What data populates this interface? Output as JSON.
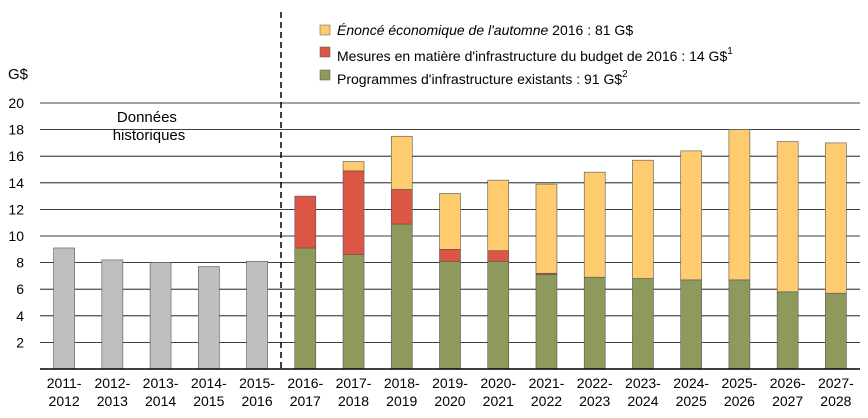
{
  "chart_data": {
    "type": "bar",
    "stacked": true,
    "ylabel": "G$",
    "ylim": [
      0,
      20
    ],
    "yticks": [
      "2",
      "4",
      "6",
      "8",
      "10",
      "12",
      "14",
      "16",
      "18",
      "20"
    ],
    "grid": true,
    "legend_position": "top",
    "historical_annotation": [
      "Données",
      "historiques"
    ],
    "categories": [
      [
        "2011-",
        "2012"
      ],
      [
        "2012-",
        "2013"
      ],
      [
        "2013-",
        "2014"
      ],
      [
        "2014-",
        "2015"
      ],
      [
        "2015-",
        "2016"
      ],
      [
        "2016-",
        "2017"
      ],
      [
        "2017-",
        "2018"
      ],
      [
        "2018-",
        "2019"
      ],
      [
        "2019-",
        "2020"
      ],
      [
        "2020-",
        "2021"
      ],
      [
        "2021-",
        "2022"
      ],
      [
        "2022-",
        "2023"
      ],
      [
        "2023-",
        "2024"
      ],
      [
        "2024-",
        "2025"
      ],
      [
        "2025-",
        "2026"
      ],
      [
        "2026-",
        "2027"
      ],
      [
        "2027-",
        "2028"
      ]
    ],
    "historical": [
      9.1,
      8.2,
      8.0,
      7.7,
      8.1,
      null,
      null,
      null,
      null,
      null,
      null,
      null,
      null,
      null,
      null,
      null,
      null
    ],
    "series": [
      {
        "name": "Programmes d'infrastructure existants : 91 G$",
        "superscript": "2",
        "color": "#8e9a5b",
        "values": [
          null,
          null,
          null,
          null,
          null,
          9.1,
          8.6,
          10.9,
          8.1,
          8.1,
          7.1,
          6.9,
          6.8,
          6.7,
          6.7,
          5.8,
          5.7
        ]
      },
      {
        "name": "Mesures en matière d'infrastructure du budget de 2016 : 14 G$",
        "superscript": "1",
        "color": "#db5744",
        "values": [
          null,
          null,
          null,
          null,
          null,
          3.9,
          6.3,
          2.6,
          0.9,
          0.8,
          0.1,
          0,
          0,
          0,
          0,
          0,
          0
        ]
      },
      {
        "name_italic": "Énoncé économique de l'automne",
        "name_rest": " 2016 : 81 G$",
        "color": "#fecb6e",
        "values": [
          null,
          null,
          null,
          null,
          null,
          0,
          0.7,
          4.0,
          4.2,
          5.3,
          6.7,
          7.9,
          8.9,
          9.7,
          11.3,
          11.3,
          11.3
        ]
      }
    ],
    "historical_color": "#bfbfbf"
  }
}
